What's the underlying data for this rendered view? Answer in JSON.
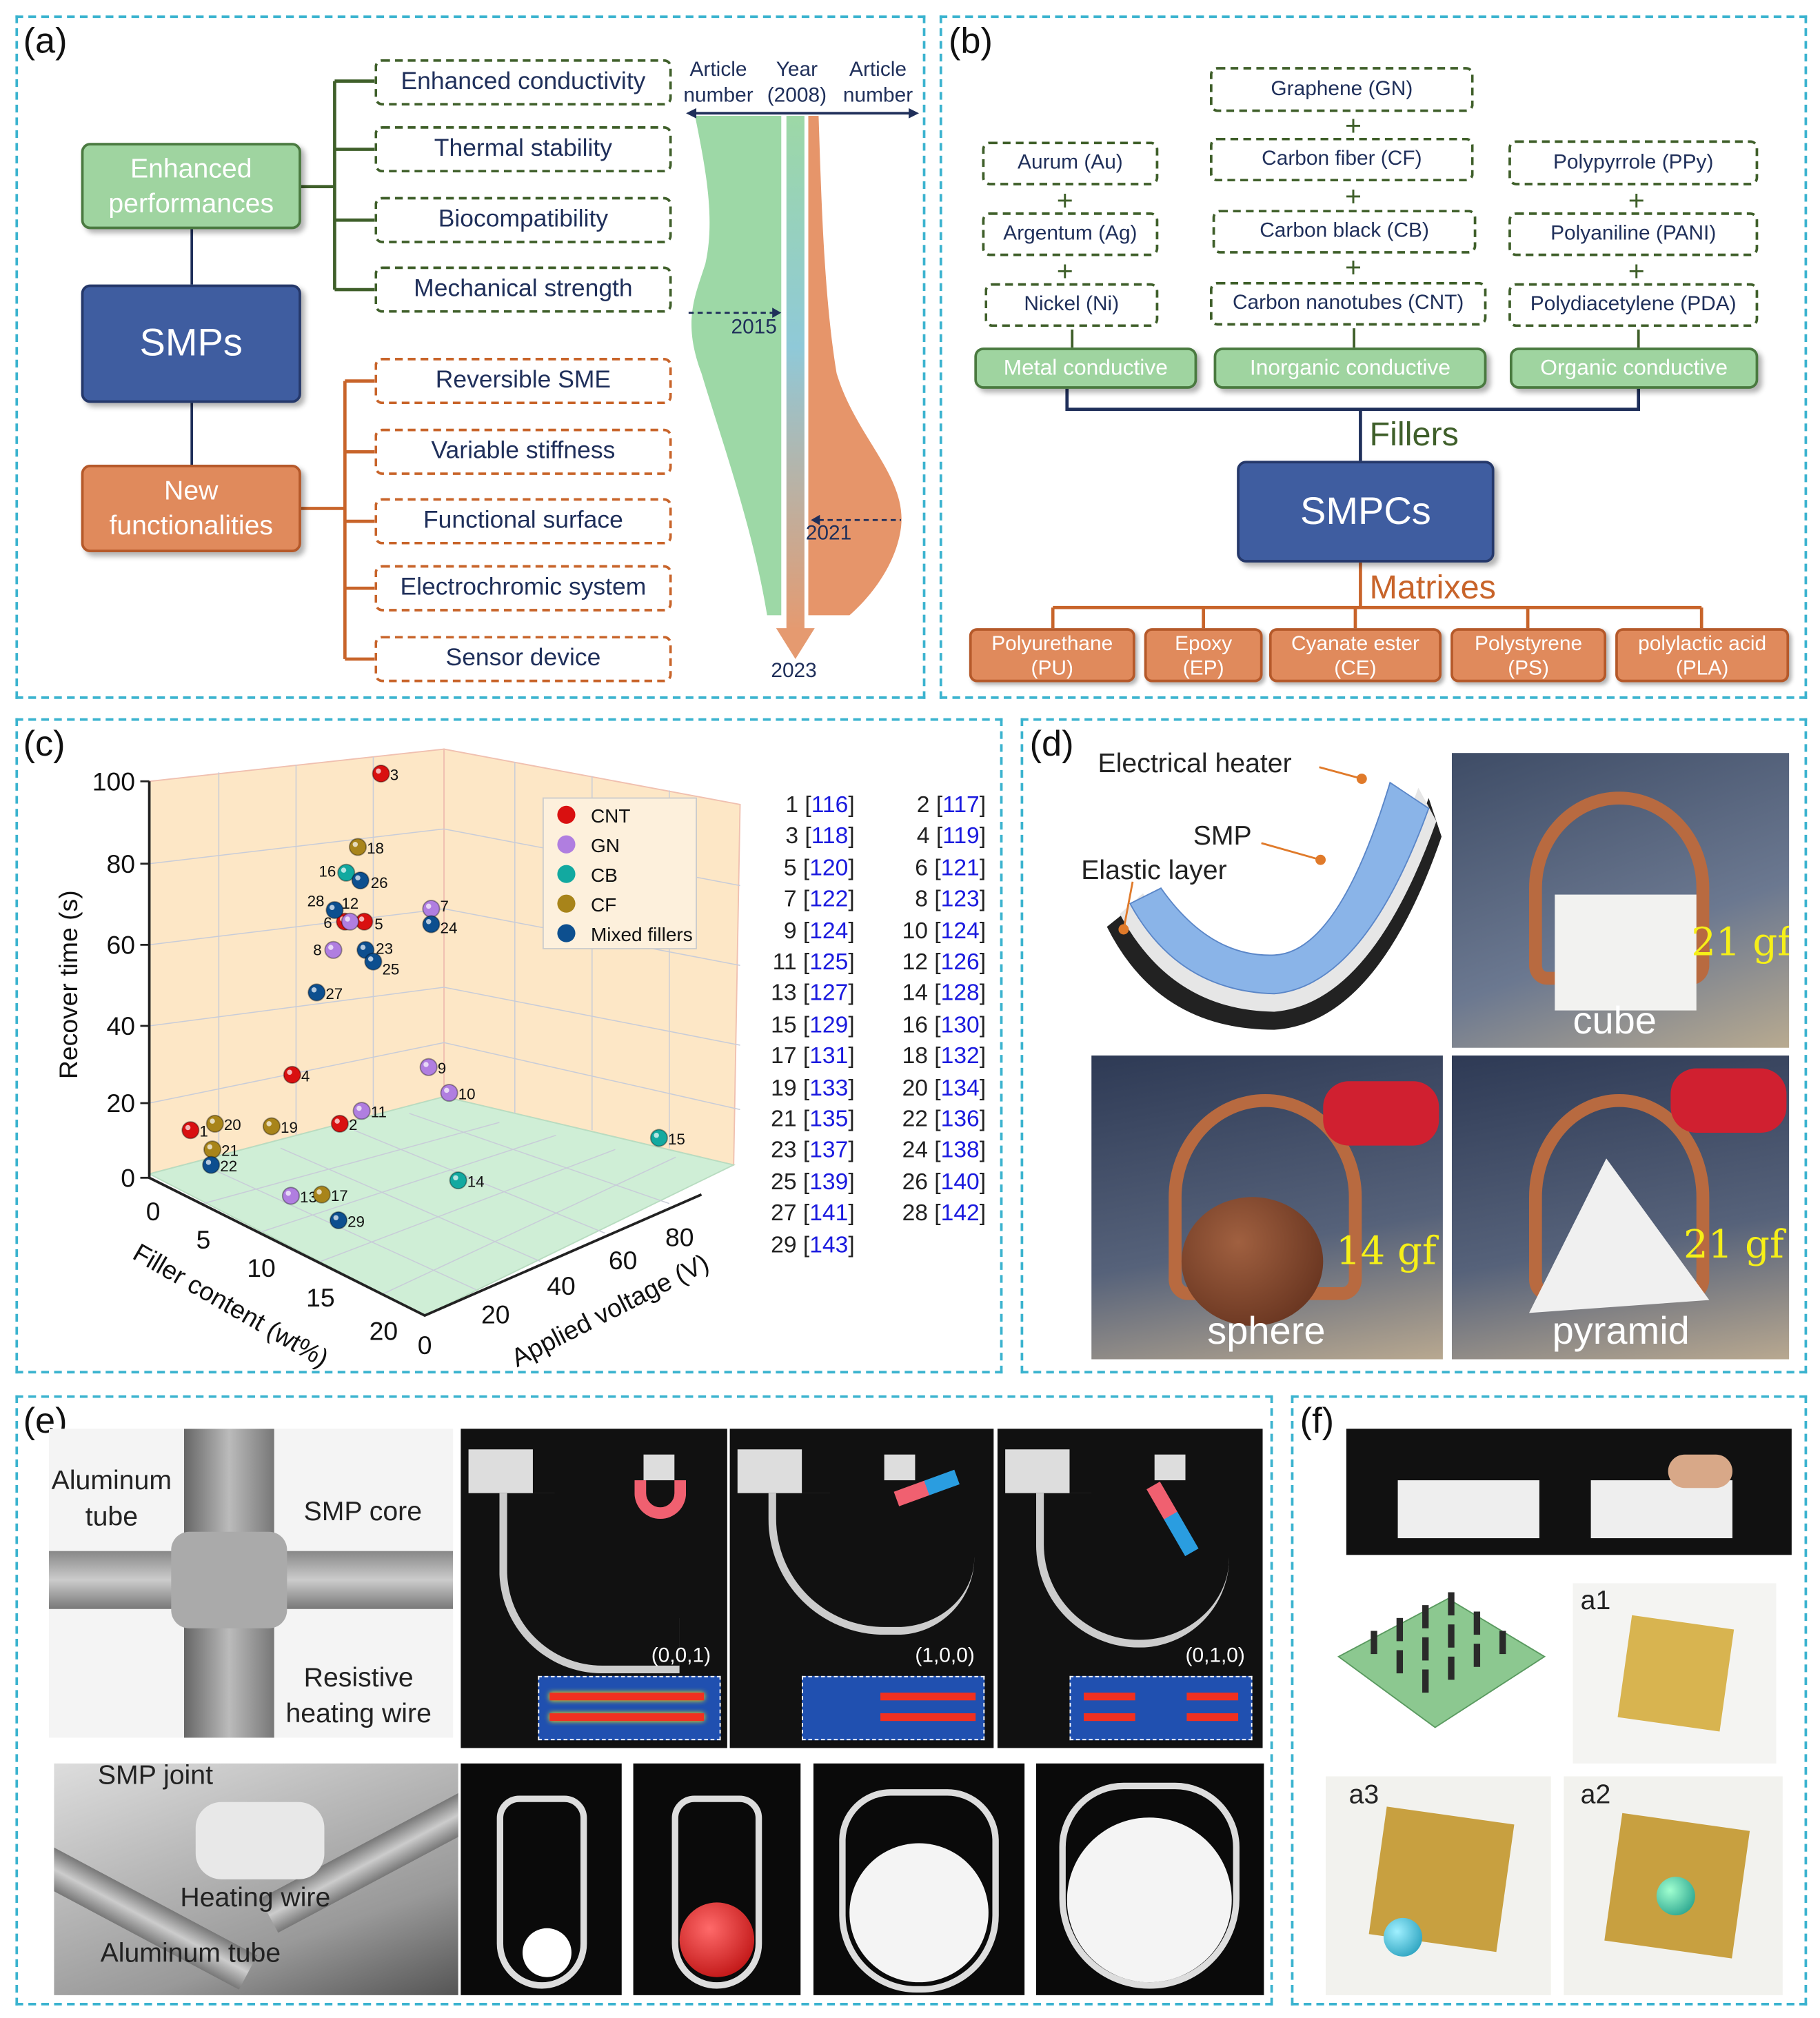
{
  "panel_labels": {
    "a": "(a)",
    "b": "(b)",
    "c": "(c)",
    "d": "(d)",
    "e": "(e)",
    "f": "(f)"
  },
  "colors": {
    "panel_border": "#3bb3cf",
    "green": "#9fd4a0",
    "blue": "#3f5da0",
    "orange": "#e08a5c",
    "dark_green": "#3f5f2a",
    "ref_blue": "#1a1adf"
  },
  "a": {
    "enhanced": "Enhanced performances",
    "smps": "SMPs",
    "new": "New functionalities",
    "performances": [
      "Enhanced conductivity",
      "Thermal stability",
      "Biocompatibility",
      "Mechanical strength"
    ],
    "functionalities": [
      "Reversible SME",
      "Variable stiffness",
      "Functional surface",
      "Electrochromic system",
      "Sensor device"
    ],
    "left_axis": [
      "Article",
      "number"
    ],
    "center_axis": [
      "Year",
      "(2008)"
    ],
    "right_axis": [
      "Article",
      "number"
    ],
    "years": [
      "2015",
      "2021",
      "2023"
    ]
  },
  "b": {
    "metal": {
      "label": "Metal  conductive",
      "items": [
        "Aurum (Au)",
        "Argentum (Ag)",
        "Nickel (Ni)"
      ]
    },
    "inorganic": {
      "label": "Inorganic conductive",
      "items": [
        "Graphene (GN)",
        "Carbon fiber (CF)",
        "Carbon black (CB)",
        "Carbon nanotubes (CNT)"
      ]
    },
    "organic": {
      "label": "Organic conductive",
      "items": [
        "Polypyrrole (PPy)",
        "Polyaniline (PANI)",
        "Polydiacetylene (PDA)"
      ]
    },
    "plus": "+",
    "fillers": "Fillers",
    "smpcs": "SMPCs",
    "matrixes": "Matrixes",
    "matrix_items": [
      [
        "Polyurethane",
        "(PU)"
      ],
      [
        "Epoxy",
        "(EP)"
      ],
      [
        "Cyanate ester",
        "(CE)"
      ],
      [
        "Polystyrene",
        "(PS)"
      ],
      [
        "polylactic acid",
        "(PLA)"
      ]
    ]
  },
  "chart_data": {
    "type": "scatter3d",
    "zlabel": "Recover time (s)",
    "xlabel": "Filler content (wt%)",
    "ylabel": "Applied voltage (V)",
    "z_ticks": [
      "0",
      "20",
      "40",
      "60",
      "80",
      "100"
    ],
    "x_ticks": [
      "0",
      "5",
      "10",
      "15",
      "20"
    ],
    "y_ticks": [
      "0",
      "20",
      "40",
      "60",
      "80"
    ],
    "zlim": [
      0,
      100
    ],
    "xlim": [
      0,
      20
    ],
    "ylim": [
      0,
      80
    ],
    "legend_position": "top-right",
    "legend": [
      {
        "name": "CNT",
        "color": "#d91010"
      },
      {
        "name": "GN",
        "color": "#b07ee0"
      },
      {
        "name": "CB",
        "color": "#12a9a0"
      },
      {
        "name": "CF",
        "color": "#a8841a"
      },
      {
        "name": "Mixed fillers",
        "color": "#0d4f8f"
      }
    ],
    "points": [
      {
        "id": "1",
        "filler": "CNT"
      },
      {
        "id": "2",
        "filler": "CNT"
      },
      {
        "id": "3",
        "filler": "CNT"
      },
      {
        "id": "4",
        "filler": "CNT"
      },
      {
        "id": "5",
        "filler": "CNT"
      },
      {
        "id": "6",
        "filler": "CNT"
      },
      {
        "id": "7",
        "filler": "GN"
      },
      {
        "id": "8",
        "filler": "GN"
      },
      {
        "id": "9",
        "filler": "GN"
      },
      {
        "id": "10",
        "filler": "GN"
      },
      {
        "id": "11",
        "filler": "GN"
      },
      {
        "id": "12",
        "filler": "GN"
      },
      {
        "id": "13",
        "filler": "GN"
      },
      {
        "id": "14",
        "filler": "CB"
      },
      {
        "id": "15",
        "filler": "CB"
      },
      {
        "id": "16",
        "filler": "CB"
      },
      {
        "id": "17",
        "filler": "CF"
      },
      {
        "id": "18",
        "filler": "CF"
      },
      {
        "id": "19",
        "filler": "CF"
      },
      {
        "id": "20",
        "filler": "CF"
      },
      {
        "id": "21",
        "filler": "CF"
      },
      {
        "id": "22",
        "filler": "Mixed fillers"
      },
      {
        "id": "23",
        "filler": "Mixed fillers"
      },
      {
        "id": "24",
        "filler": "Mixed fillers"
      },
      {
        "id": "25",
        "filler": "Mixed fillers"
      },
      {
        "id": "26",
        "filler": "Mixed fillers"
      },
      {
        "id": "27",
        "filler": "Mixed fillers"
      },
      {
        "id": "28",
        "filler": "Mixed fillers"
      },
      {
        "id": "29",
        "filler": "Mixed fillers"
      }
    ]
  },
  "c": {
    "refs": [
      {
        "n": "1",
        "ref": "116"
      },
      {
        "n": "2",
        "ref": "117"
      },
      {
        "n": "3",
        "ref": "118"
      },
      {
        "n": "4",
        "ref": "119"
      },
      {
        "n": "5",
        "ref": "120"
      },
      {
        "n": "6",
        "ref": "121"
      },
      {
        "n": "7",
        "ref": "122"
      },
      {
        "n": "8",
        "ref": "123"
      },
      {
        "n": "9",
        "ref": "124"
      },
      {
        "n": "10",
        "ref": "124"
      },
      {
        "n": "11",
        "ref": "125"
      },
      {
        "n": "12",
        "ref": "126"
      },
      {
        "n": "13",
        "ref": "127"
      },
      {
        "n": "14",
        "ref": "128"
      },
      {
        "n": "15",
        "ref": "129"
      },
      {
        "n": "16",
        "ref": "130"
      },
      {
        "n": "17",
        "ref": "131"
      },
      {
        "n": "18",
        "ref": "132"
      },
      {
        "n": "19",
        "ref": "133"
      },
      {
        "n": "20",
        "ref": "134"
      },
      {
        "n": "21",
        "ref": "135"
      },
      {
        "n": "22",
        "ref": "136"
      },
      {
        "n": "23",
        "ref": "137"
      },
      {
        "n": "24",
        "ref": "138"
      },
      {
        "n": "25",
        "ref": "139"
      },
      {
        "n": "26",
        "ref": "140"
      },
      {
        "n": "27",
        "ref": "141"
      },
      {
        "n": "28",
        "ref": "142"
      },
      {
        "n": "29",
        "ref": "143"
      }
    ]
  },
  "d": {
    "heater": "Electrical heater",
    "smp": "SMP",
    "elastic": "Elastic layer",
    "cube_force": "21 gf",
    "cube": "cube",
    "sphere_force": "14 gf",
    "sphere": "sphere",
    "pyramid_force": "21 gf",
    "pyramid": "pyramid"
  },
  "e": {
    "aluminum_tube": [
      "Aluminum",
      "tube"
    ],
    "smp_core": "SMP core",
    "heating_wire": [
      "Resistive",
      "heating wire"
    ],
    "states": [
      "(0,0,1)",
      "(1,0,0)",
      "(0,1,0)"
    ],
    "smp_joint": "SMP joint",
    "heating_wire2": "Heating wire",
    "aluminum_tube2": "Aluminum tube"
  },
  "f": {
    "a1": "a1",
    "a2": "a2",
    "a3": "a3"
  }
}
